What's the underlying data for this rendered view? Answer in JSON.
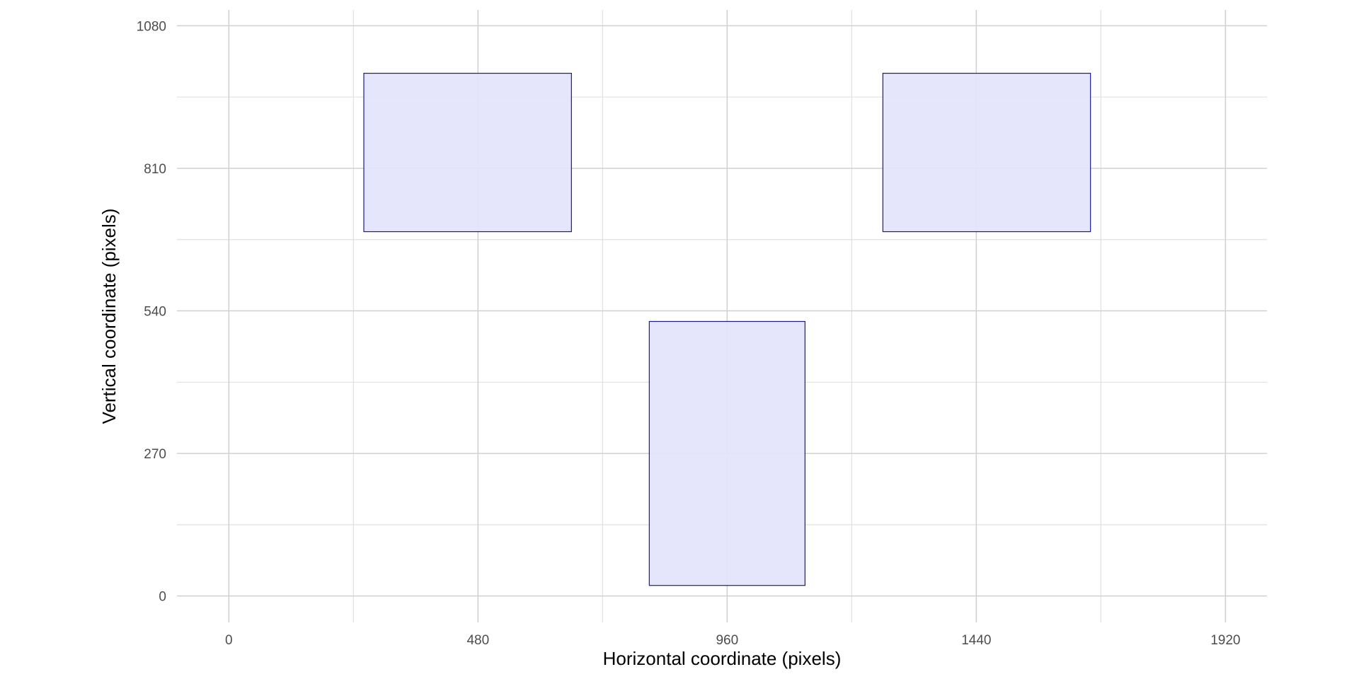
{
  "chart_data": {
    "type": "rect",
    "title": "",
    "xlabel": "Horizontal coordinate (pixels)",
    "ylabel": "Vertical coordinate (pixels)",
    "xlim": [
      -100,
      2000
    ],
    "ylim": [
      -50,
      1110
    ],
    "x_ticks": [
      0,
      480,
      960,
      1440,
      1920
    ],
    "y_ticks": [
      0,
      270,
      540,
      810,
      1080
    ],
    "x_minor_ticks": [
      240,
      720,
      1200,
      1680
    ],
    "y_minor_ticks": [
      135,
      405,
      675,
      945
    ],
    "grid": true,
    "fill_color": "#e3e3fb",
    "stroke_color": "#1a1a8c",
    "rects": [
      {
        "xmin": 260,
        "xmax": 660,
        "ymin": 690,
        "ymax": 990
      },
      {
        "xmin": 1260,
        "xmax": 1660,
        "ymin": 690,
        "ymax": 990
      },
      {
        "xmin": 810,
        "xmax": 1110,
        "ymin": 20,
        "ymax": 520
      }
    ]
  }
}
